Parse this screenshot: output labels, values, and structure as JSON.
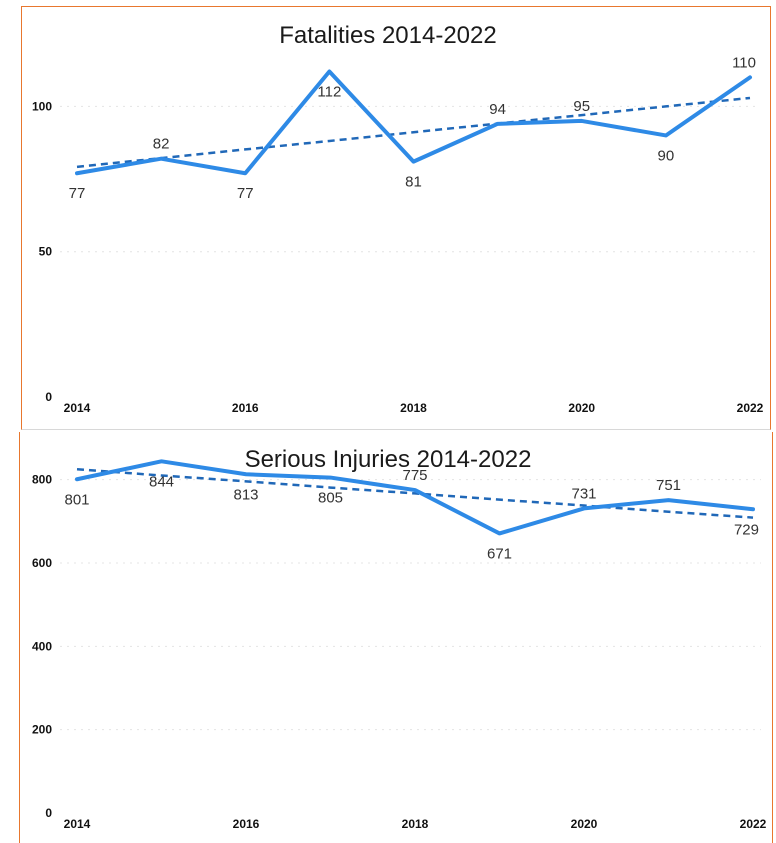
{
  "chart_data": [
    {
      "type": "line",
      "title": "Fatalities 2014-2022",
      "x": [
        2014,
        2015,
        2016,
        2017,
        2018,
        2019,
        2020,
        2021,
        2022
      ],
      "x_tick_labels": [
        "2014",
        "2016",
        "2018",
        "2020",
        "2022"
      ],
      "y_tick_labels": [
        "0",
        "50",
        "100"
      ],
      "ylim": [
        0,
        117
      ],
      "series": [
        {
          "values": [
            77,
            82,
            77,
            112,
            81,
            94,
            95,
            90,
            110
          ],
          "color": "#2e8ae6",
          "style": "solid"
        },
        {
          "trendline": true,
          "values": [
            79.2,
            82.2,
            85.2,
            88.1,
            91.1,
            94.1,
            97.0,
            100.0,
            102.9
          ],
          "color": "#2068b8",
          "style": "dashed"
        }
      ],
      "data_labels": [
        "77",
        "82",
        "77",
        "112",
        "81",
        "94",
        "95",
        "90",
        "110"
      ],
      "grid": true,
      "legend": "none"
    },
    {
      "type": "line",
      "title": "Serious Injuries 2014-2022",
      "x": [
        2014,
        2015,
        2016,
        2017,
        2018,
        2019,
        2020,
        2021,
        2022
      ],
      "x_tick_labels": [
        "2014",
        "2016",
        "2018",
        "2020",
        "2022"
      ],
      "y_tick_labels": [
        "0",
        "200",
        "400",
        "600",
        "800"
      ],
      "ylim": [
        0,
        900
      ],
      "series": [
        {
          "values": [
            801,
            844,
            813,
            805,
            775,
            671,
            731,
            751,
            729
          ],
          "color": "#2e8ae6",
          "style": "solid"
        },
        {
          "trendline": true,
          "values": [
            825,
            810,
            796,
            781,
            767,
            752,
            738,
            723,
            709
          ],
          "color": "#2068b8",
          "style": "dashed"
        }
      ],
      "data_labels": [
        "801",
        "844",
        "813",
        "805",
        "775",
        "671",
        "731",
        "751",
        "729"
      ],
      "grid": true,
      "legend": "none"
    }
  ]
}
